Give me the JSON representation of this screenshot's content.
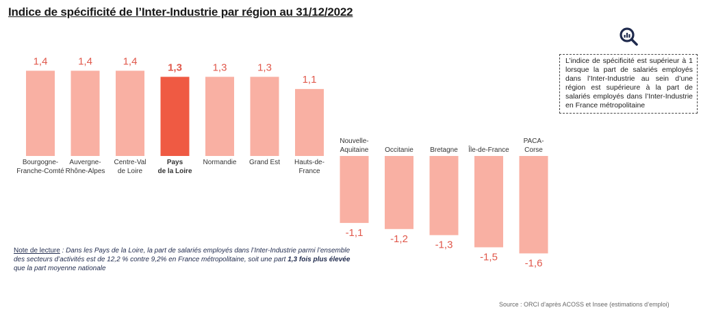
{
  "title": "Indice de spécificité de l’Inter-Industrie par région au 31/12/2022",
  "info_box": "L’indice de spécificité est supérieur à 1 lorsque la part de salariés employés dans l’Inter-Industrie au sein d’une région est supérieure à la part de salariés employés dans l’Inter-Industrie en France métropolitaine",
  "note": {
    "lead": "Note de lecture",
    "sep": " : ",
    "text_before": "Dans les Pays de la Loire, la part de salariés employés dans l’Inter-Industrie parmi l’ensemble des secteurs d’activités est de 12,2 % contre 9,2% en France métropolitaine, soit une part ",
    "bold": "1,3 fois plus élevée",
    "text_after": " que la part moyenne nationale"
  },
  "source": "Source : ORCI d’après ACOSS et Insee (estimations d’emploi)",
  "icon": "search-chart-icon",
  "colors": {
    "bar": "#f9b0a3",
    "highlight": "#ef5a43",
    "value_text": "#e0574a",
    "note_text": "#1f2a4d"
  },
  "chart_data": {
    "type": "bar",
    "title": "Indice de spécificité de l’Inter-Industrie par région au 31/12/2022",
    "categories": [
      [
        "Bourgogne-",
        "Franche-Comté"
      ],
      [
        "Auvergne-",
        "Rhône-Alpes"
      ],
      [
        "Centre-Val",
        "de Loire"
      ],
      [
        "Pays",
        "de la Loire"
      ],
      [
        "Normandie"
      ],
      [
        "Grand Est"
      ],
      [
        "Hauts-de-",
        "France"
      ],
      [
        "Nouvelle-",
        "Aquitaine"
      ],
      [
        "Occitanie"
      ],
      [
        "Bretagne"
      ],
      [
        "Île-de-France"
      ],
      [
        "PACA-",
        "Corse"
      ]
    ],
    "values": [
      1.4,
      1.4,
      1.4,
      1.3,
      1.3,
      1.3,
      1.1,
      -1.1,
      -1.2,
      -1.3,
      -1.5,
      -1.6
    ],
    "labels": [
      "1,4",
      "1,4",
      "1,4",
      "1,3",
      "1,3",
      "1,3",
      "1,1",
      "-1,1",
      "-1,2",
      "-1,3",
      "-1,5",
      "-1,6"
    ],
    "highlight_index": 3,
    "axis": "hidden",
    "grid": false,
    "legend": "none"
  }
}
